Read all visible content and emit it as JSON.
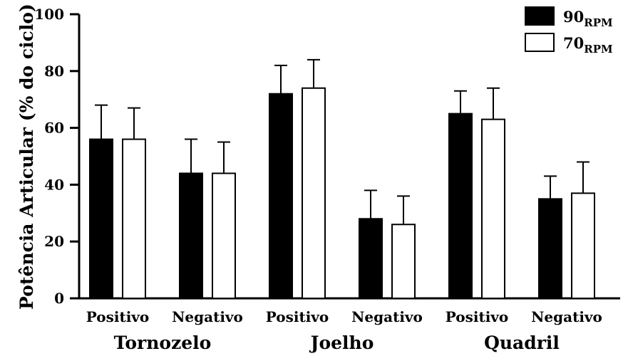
{
  "chart_data": {
    "type": "bar",
    "ylabel": "Potência Articular (% do ciclo)",
    "ylim": [
      0,
      100
    ],
    "yticks": [
      0,
      20,
      40,
      60,
      80,
      100
    ],
    "grid": false,
    "legend_position": "top-right",
    "groups": [
      {
        "label": "Tornozelo",
        "categories": [
          "Positivo",
          "Negativo"
        ]
      },
      {
        "label": "Joelho",
        "categories": [
          "Positivo",
          "Negativo"
        ]
      },
      {
        "label": "Quadril",
        "categories": [
          "Positivo",
          "Negativo"
        ]
      }
    ],
    "series": [
      {
        "name": "90",
        "subscript": "RPM",
        "color": "#000000",
        "values": [
          56,
          44,
          72,
          28,
          65,
          35
        ],
        "errors": [
          12,
          12,
          10,
          10,
          8,
          8
        ]
      },
      {
        "name": "70",
        "subscript": "RPM",
        "color": "#ffffff",
        "values": [
          56,
          44,
          74,
          26,
          63,
          37
        ],
        "errors": [
          11,
          11,
          10,
          10,
          11,
          11
        ]
      }
    ]
  }
}
